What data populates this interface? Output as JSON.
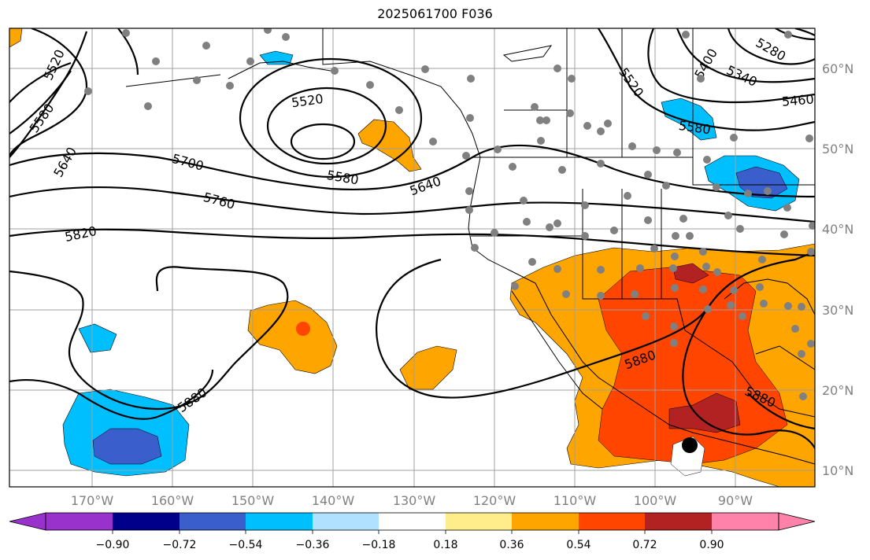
{
  "title": "2025061700 F036",
  "map": {
    "lon_range": [
      -180,
      -80
    ],
    "lat_range": [
      8,
      65
    ],
    "lat_labels": [
      "60°N",
      "50°N",
      "40°N",
      "30°N",
      "20°N",
      "10°N"
    ],
    "lon_labels": [
      "170°W",
      "160°W",
      "150°W",
      "140°W",
      "130°W",
      "120°W",
      "110°W",
      "100°W",
      "90°W"
    ],
    "contour_labels": [
      "5520",
      "5580",
      "5640",
      "5520",
      "5580",
      "5640",
      "5700",
      "5760",
      "5820",
      "5880",
      "5880",
      "5880",
      "5520",
      "5400",
      "5280",
      "5340",
      "5460",
      "5580"
    ],
    "colors": {
      "frame": "#000000",
      "grid": "#a0a0a0",
      "neg_strong": "#3a5fcd",
      "neg_mid": "#00bfff",
      "pos_low": "#ffa500",
      "pos_mid": "#ff4500",
      "pos_high": "#b22222",
      "station": "#808080"
    }
  },
  "colorbar": {
    "colors": [
      "#9932cc",
      "#00008b",
      "#3a5fcd",
      "#00bfff",
      "#b0e2ff",
      "#ffffff",
      "#ffec8b",
      "#ffa500",
      "#ff4500",
      "#b22222",
      "#ff82ab"
    ],
    "tick_labels": [
      "−0.90",
      "−0.72",
      "−0.54",
      "−0.36",
      "−0.18",
      "0.18",
      "0.36",
      "0.54",
      "0.72",
      "0.90"
    ]
  }
}
